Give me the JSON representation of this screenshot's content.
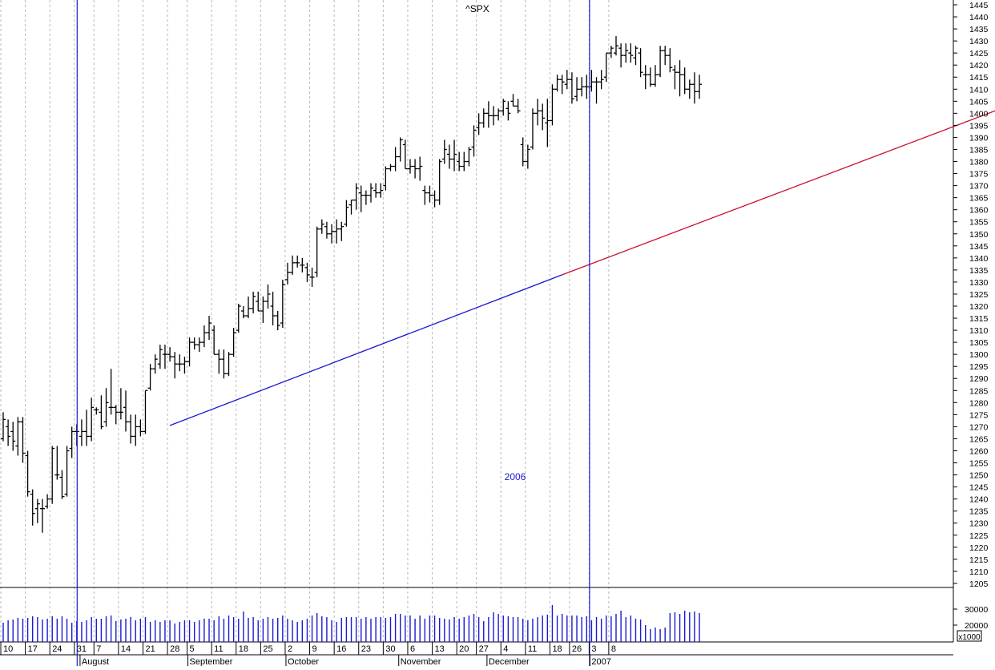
{
  "chart_data": {
    "type": "ohlc",
    "title": "^SPX",
    "year_label": "2006",
    "next_year_label": "2007",
    "volume_unit_label": "x1000",
    "price_ylim": [
      1205,
      1445
    ],
    "price_ytick_step": 5,
    "volume_ticks": [
      20000,
      30000
    ],
    "volume_ylim": [
      13500,
      38000
    ],
    "colors": {
      "price_bar": "#000000",
      "volume_bar": "#1a1ad0",
      "trendline_blue": "#1a1ad0",
      "trendline_red": "#c8102e",
      "marker_line": "#1a1ad0",
      "year_label": "#1a1ad0",
      "grid": "#b8b8b8"
    },
    "day_labels": [
      "10",
      "17",
      "24",
      "31",
      "7",
      "14",
      "21",
      "28",
      "5",
      "11",
      "18",
      "25",
      "2",
      "9",
      "16",
      "23",
      "30",
      "6",
      "13",
      "20",
      "27",
      "4",
      "11",
      "18",
      "26",
      "3",
      "8"
    ],
    "month_labels": [
      "August",
      "September",
      "October",
      "November",
      "December",
      "2007"
    ],
    "sessions_per_week": [
      5,
      5,
      5,
      4,
      5,
      5,
      5,
      4,
      5,
      5,
      5,
      5,
      5,
      5,
      5,
      5,
      5,
      5,
      5,
      4,
      5,
      5,
      5,
      4,
      4,
      4,
      1
    ],
    "ohlc": [
      [
        1265,
        1276,
        1264,
        1273
      ],
      [
        1270,
        1273,
        1262,
        1266
      ],
      [
        1268,
        1272,
        1260,
        1264
      ],
      [
        1262,
        1274,
        1258,
        1272
      ],
      [
        1272,
        1274,
        1255,
        1259
      ],
      [
        1258,
        1260,
        1241,
        1243
      ],
      [
        1242,
        1244,
        1229,
        1234
      ],
      [
        1236,
        1240,
        1230,
        1238
      ],
      [
        1236,
        1240,
        1226,
        1236
      ],
      [
        1237,
        1242,
        1236,
        1240
      ],
      [
        1240,
        1262,
        1238,
        1261
      ],
      [
        1250,
        1262,
        1248,
        1250
      ],
      [
        1249,
        1252,
        1240,
        1241
      ],
      [
        1242,
        1262,
        1241,
        1260
      ],
      [
        1261,
        1270,
        1257,
        1268
      ],
      [
        1268,
        1271,
        1262,
        1268
      ],
      [
        1266,
        1273,
        1262,
        1268
      ],
      [
        1268,
        1277,
        1262,
        1266
      ],
      [
        1266,
        1282,
        1264,
        1278
      ],
      [
        1277,
        1278,
        1275,
        1277
      ],
      [
        1276,
        1283,
        1269,
        1270
      ],
      [
        1272,
        1286,
        1270,
        1280
      ],
      [
        1278,
        1294,
        1275,
        1278
      ],
      [
        1278,
        1279,
        1271,
        1276
      ],
      [
        1276,
        1286,
        1273,
        1276
      ],
      [
        1278,
        1285,
        1268,
        1272
      ],
      [
        1272,
        1275,
        1263,
        1266
      ],
      [
        1266,
        1275,
        1262,
        1270
      ],
      [
        1270,
        1273,
        1266,
        1268
      ],
      [
        1268,
        1285,
        1267,
        1285
      ],
      [
        1286,
        1296,
        1285,
        1294
      ],
      [
        1294,
        1300,
        1292,
        1298
      ],
      [
        1296,
        1304,
        1294,
        1302
      ],
      [
        1300,
        1304,
        1294,
        1300
      ],
      [
        1300,
        1303,
        1297,
        1299
      ],
      [
        1299,
        1301,
        1290,
        1296
      ],
      [
        1296,
        1300,
        1293,
        1296
      ],
      [
        1296,
        1299,
        1292,
        1297
      ],
      [
        1297,
        1307,
        1295,
        1305
      ],
      [
        1305,
        1307,
        1302,
        1304
      ],
      [
        1304,
        1307,
        1301,
        1305
      ],
      [
        1305,
        1312,
        1303,
        1309
      ],
      [
        1309,
        1316,
        1306,
        1313
      ],
      [
        1310,
        1312,
        1300,
        1300
      ],
      [
        1300,
        1302,
        1292,
        1298
      ],
      [
        1298,
        1302,
        1290,
        1292
      ],
      [
        1292,
        1301,
        1291,
        1300
      ],
      [
        1300,
        1311,
        1299,
        1309
      ],
      [
        1310,
        1321,
        1309,
        1320
      ],
      [
        1318,
        1320,
        1315,
        1316
      ],
      [
        1316,
        1324,
        1315,
        1319
      ],
      [
        1319,
        1326,
        1317,
        1324
      ],
      [
        1322,
        1326,
        1318,
        1318
      ],
      [
        1318,
        1324,
        1313,
        1322
      ],
      [
        1322,
        1329,
        1319,
        1325
      ],
      [
        1320,
        1326,
        1312,
        1316
      ],
      [
        1316,
        1318,
        1310,
        1312
      ],
      [
        1313,
        1331,
        1311,
        1329
      ],
      [
        1331,
        1338,
        1329,
        1334
      ],
      [
        1334,
        1341,
        1333,
        1338
      ],
      [
        1338,
        1341,
        1336,
        1338
      ],
      [
        1337,
        1340,
        1334,
        1337
      ],
      [
        1336,
        1338,
        1330,
        1333
      ],
      [
        1332,
        1336,
        1328,
        1332
      ],
      [
        1334,
        1353,
        1332,
        1352
      ],
      [
        1352,
        1356,
        1350,
        1354
      ],
      [
        1353,
        1355,
        1348,
        1350
      ],
      [
        1350,
        1354,
        1346,
        1351
      ],
      [
        1351,
        1356,
        1346,
        1352
      ],
      [
        1352,
        1355,
        1347,
        1353
      ],
      [
        1354,
        1364,
        1353,
        1361
      ],
      [
        1362,
        1364,
        1358,
        1364
      ],
      [
        1364,
        1371,
        1360,
        1369
      ],
      [
        1367,
        1370,
        1359,
        1366
      ],
      [
        1366,
        1368,
        1362,
        1366
      ],
      [
        1366,
        1371,
        1363,
        1369
      ],
      [
        1368,
        1371,
        1365,
        1367
      ],
      [
        1367,
        1371,
        1365,
        1368
      ],
      [
        1370,
        1378,
        1368,
        1377
      ],
      [
        1377,
        1379,
        1376,
        1378
      ],
      [
        1378,
        1386,
        1376,
        1382
      ],
      [
        1382,
        1390,
        1380,
        1389
      ],
      [
        1387,
        1389,
        1377,
        1377
      ],
      [
        1377,
        1381,
        1375,
        1378
      ],
      [
        1378,
        1381,
        1373,
        1377
      ],
      [
        1377,
        1382,
        1372,
        1378
      ],
      [
        1368,
        1370,
        1362,
        1367
      ],
      [
        1367,
        1370,
        1363,
        1366
      ],
      [
        1366,
        1368,
        1361,
        1364
      ],
      [
        1364,
        1381,
        1362,
        1380
      ],
      [
        1381,
        1389,
        1379,
        1385
      ],
      [
        1383,
        1387,
        1377,
        1381
      ],
      [
        1381,
        1389,
        1376,
        1383
      ],
      [
        1380,
        1384,
        1376,
        1378
      ],
      [
        1378,
        1384,
        1376,
        1380
      ],
      [
        1380,
        1386,
        1378,
        1385
      ],
      [
        1386,
        1395,
        1382,
        1393
      ],
      [
        1394,
        1400,
        1391,
        1396
      ],
      [
        1396,
        1402,
        1394,
        1400
      ],
      [
        1400,
        1405,
        1394,
        1399
      ],
      [
        1399,
        1403,
        1395,
        1399
      ],
      [
        1399,
        1402,
        1397,
        1401
      ],
      [
        1401,
        1406,
        1399,
        1405
      ],
      [
        1402,
        1405,
        1397,
        1400
      ],
      [
        1405,
        1408,
        1403,
        1403
      ],
      [
        1403,
        1406,
        1400,
        1401
      ],
      [
        1387,
        1390,
        1378,
        1380
      ],
      [
        1380,
        1387,
        1377,
        1385
      ],
      [
        1386,
        1402,
        1385,
        1400
      ],
      [
        1400,
        1406,
        1395,
        1401
      ],
      [
        1401,
        1404,
        1393,
        1398
      ],
      [
        1396,
        1406,
        1386,
        1397
      ],
      [
        1397,
        1412,
        1395,
        1410
      ],
      [
        1410,
        1416,
        1409,
        1414
      ],
      [
        1414,
        1416,
        1408,
        1413
      ],
      [
        1412,
        1418,
        1410,
        1414
      ],
      [
        1414,
        1417,
        1404,
        1406
      ],
      [
        1407,
        1415,
        1405,
        1410
      ],
      [
        1410,
        1415,
        1407,
        1411
      ],
      [
        1411,
        1416,
        1406,
        1411
      ],
      [
        1411,
        1418,
        1409,
        1413
      ],
      [
        1413,
        1415,
        1404,
        1413
      ],
      [
        1413,
        1418,
        1410,
        1414
      ],
      [
        1415,
        1425,
        1413,
        1425
      ],
      [
        1425,
        1428,
        1423,
        1427
      ],
      [
        1425,
        1432,
        1424,
        1428
      ],
      [
        1427,
        1429,
        1419,
        1424
      ],
      [
        1424,
        1429,
        1421,
        1426
      ],
      [
        1425,
        1429,
        1421,
        1424
      ],
      [
        1423,
        1428,
        1420,
        1427
      ],
      [
        1425,
        1427,
        1415,
        1417
      ],
      [
        1416,
        1420,
        1410,
        1416
      ],
      [
        1416,
        1419,
        1411,
        1412
      ],
      [
        1412,
        1420,
        1411,
        1416
      ],
      [
        1416,
        1428,
        1415,
        1426
      ],
      [
        1426,
        1428,
        1420,
        1424
      ],
      [
        1424,
        1427,
        1417,
        1419
      ],
      [
        1418,
        1420,
        1410,
        1417
      ],
      [
        1417,
        1422,
        1407,
        1416
      ],
      [
        1416,
        1419,
        1408,
        1410
      ],
      [
        1410,
        1414,
        1406,
        1412
      ],
      [
        1412,
        1417,
        1404,
        1409
      ],
      [
        1409,
        1416,
        1406,
        1412
      ]
    ],
    "volume": [
      21500,
      23000,
      23500,
      24500,
      24000,
      24500,
      25500,
      25000,
      23500,
      24000,
      25500,
      24000,
      25500,
      24000,
      21500,
      22500,
      22000,
      23000,
      25000,
      24000,
      24000,
      25500,
      26000,
      22500,
      23500,
      24000,
      25000,
      23000,
      24000,
      25000,
      22000,
      23000,
      22000,
      23000,
      23000,
      21000,
      22000,
      23000,
      23000,
      22000,
      23000,
      24000,
      24000,
      23000,
      25500,
      24000,
      26000,
      25000,
      24000,
      28500,
      24500,
      25000,
      23000,
      24000,
      25000,
      24000,
      24500,
      26000,
      24000,
      23000,
      22000,
      23000,
      24000,
      26000,
      27500,
      25500,
      25000,
      23000,
      22000,
      24500,
      25000,
      25000,
      25000,
      24000,
      25000,
      24000,
      25000,
      25000,
      24500,
      25000,
      27000,
      27000,
      26000,
      26000,
      24000,
      26000,
      24000,
      26000,
      26000,
      24500,
      24000,
      23500,
      25000,
      24000,
      25000,
      26000,
      27000,
      25000,
      22500,
      25000,
      28000,
      27000,
      26000,
      25500,
      25000,
      25000,
      24000,
      23000,
      24000,
      25000,
      26000,
      26500,
      32500,
      26000,
      27000,
      26000,
      26000,
      26000,
      25000,
      25500,
      23000,
      25000,
      24000,
      26000,
      25500,
      27000,
      29000,
      25000,
      26000,
      24000,
      23500,
      20000,
      17500,
      18500,
      17500,
      18500,
      27500,
      28000,
      27000,
      29000,
      28000,
      28500,
      27500
    ],
    "trendlines": [
      {
        "from_session": 34,
        "from_price": 1270.5,
        "to_session": 114,
        "to_price": 1333,
        "color_key": "trendline_blue"
      },
      {
        "from_session": 114,
        "from_price": 1333,
        "to_session": 225,
        "to_price": 1418.5,
        "color_key": "trendline_red"
      }
    ]
  }
}
